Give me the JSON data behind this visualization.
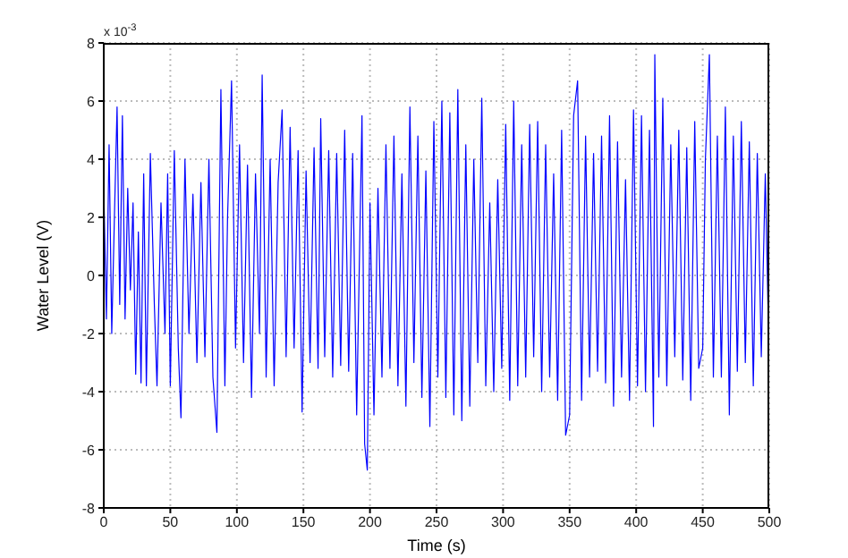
{
  "chart_data": {
    "type": "line",
    "xlabel": "Time (s)",
    "ylabel": "Water Level (V)",
    "annotations": [
      "x 10$^{-3}$"
    ],
    "xlim": [
      0,
      500
    ],
    "xticks": [
      0,
      50,
      100,
      150,
      200,
      250,
      300,
      350,
      400,
      450,
      500
    ],
    "ylim": [
      -8,
      8
    ],
    "yticks": [
      -8,
      -6,
      -4,
      -2,
      0,
      2,
      4,
      6,
      8
    ],
    "grid": true,
    "legend": false,
    "marker": "none",
    "line_style": "solid",
    "x": [
      0,
      2,
      4,
      6,
      8,
      10,
      12,
      14,
      16,
      18,
      20,
      22,
      24,
      26,
      28,
      30,
      32,
      35,
      38,
      40,
      43,
      46,
      48,
      50,
      53,
      56,
      58,
      61,
      64,
      67,
      70,
      73,
      76,
      79,
      82,
      85,
      88,
      91,
      93,
      96,
      99,
      102,
      105,
      108,
      111,
      114,
      117,
      119,
      122,
      125,
      128,
      131,
      134,
      137,
      140,
      143,
      146,
      149,
      152,
      155,
      158,
      161,
      163,
      166,
      169,
      172,
      175,
      178,
      181,
      184,
      187,
      190,
      194,
      196,
      198,
      200,
      203,
      206,
      209,
      212,
      215,
      218,
      221,
      224,
      227,
      230,
      233,
      236,
      239,
      242,
      245,
      248,
      251,
      254,
      257,
      260,
      263,
      266,
      269,
      272,
      275,
      278,
      281,
      284,
      287,
      290,
      293,
      296,
      299,
      302,
      305,
      308,
      311,
      314,
      317,
      320,
      323,
      326,
      329,
      332,
      335,
      338,
      341,
      344,
      347,
      350,
      353,
      356,
      359,
      362,
      365,
      368,
      371,
      374,
      377,
      380,
      383,
      386,
      389,
      392,
      395,
      398,
      401,
      404,
      407,
      410,
      413,
      414,
      417,
      420,
      423,
      426,
      429,
      432,
      435,
      438,
      441,
      444,
      447,
      450,
      452,
      455,
      458,
      461,
      464,
      467,
      470,
      473,
      476,
      479,
      482,
      485,
      488,
      491,
      494,
      497,
      499
    ],
    "series": [
      {
        "color": "#0000ff",
        "values": [
          3,
          -1.5,
          4.5,
          -2,
          2,
          5.8,
          -1,
          5.5,
          -1.5,
          3,
          -0.5,
          2.5,
          -3.4,
          1.5,
          -3.7,
          3.5,
          -3.8,
          4.2,
          -1,
          -3.8,
          2.5,
          -2,
          3.5,
          -3.8,
          4.3,
          -2.5,
          -4.9,
          4,
          -2,
          2.8,
          -3,
          3.2,
          -2.8,
          4,
          -3.5,
          -5.4,
          6.4,
          -3.8,
          2,
          6.7,
          -2.5,
          4.5,
          -3,
          3.8,
          -4.2,
          3.5,
          -2,
          6.9,
          -3.5,
          4,
          -3.8,
          3.2,
          5.7,
          -2.8,
          5.1,
          -2.5,
          4.3,
          -4.7,
          3.6,
          -3,
          4.4,
          -3.2,
          5.4,
          -2.8,
          4.3,
          -3.5,
          4.2,
          -3.1,
          5,
          -3.3,
          4.2,
          -4.8,
          5.5,
          -5.8,
          -6.7,
          2.5,
          -4.8,
          3,
          -3.5,
          4.5,
          -3.2,
          4.8,
          -3.8,
          3.5,
          -4.5,
          5.8,
          -3,
          4.8,
          -4.2,
          3.6,
          -5.2,
          5.3,
          -3.5,
          6,
          -4.2,
          5.6,
          -4.8,
          6.4,
          -5,
          4.5,
          -4.5,
          4,
          -3,
          6.1,
          -3.8,
          2.5,
          -4,
          3.3,
          -3.2,
          5.2,
          -4.3,
          6,
          -3.8,
          4.5,
          -3.5,
          5.2,
          -2.8,
          5.3,
          -4,
          4.5,
          -3.5,
          3.5,
          -4.3,
          5,
          -5.5,
          -4.8,
          5.5,
          6.7,
          -4.3,
          4.8,
          -3.5,
          4.2,
          -3.3,
          4.8,
          -3.7,
          5.5,
          -4.5,
          4.6,
          -3.5,
          3.3,
          -4.3,
          5.7,
          -3.8,
          5.5,
          -4,
          5,
          -5.2,
          7.6,
          -3.5,
          6.1,
          -3.8,
          4.5,
          -2.8,
          5,
          -3.6,
          4.4,
          -4.3,
          5.3,
          -3.2,
          -2.5,
          4,
          7.6,
          -3.5,
          4.8,
          -3.5,
          5.8,
          -4.8,
          4.8,
          -3.3,
          5.3,
          -3,
          4.6,
          -3.8,
          4.2,
          -2.8,
          3.5,
          -1
        ]
      }
    ]
  }
}
